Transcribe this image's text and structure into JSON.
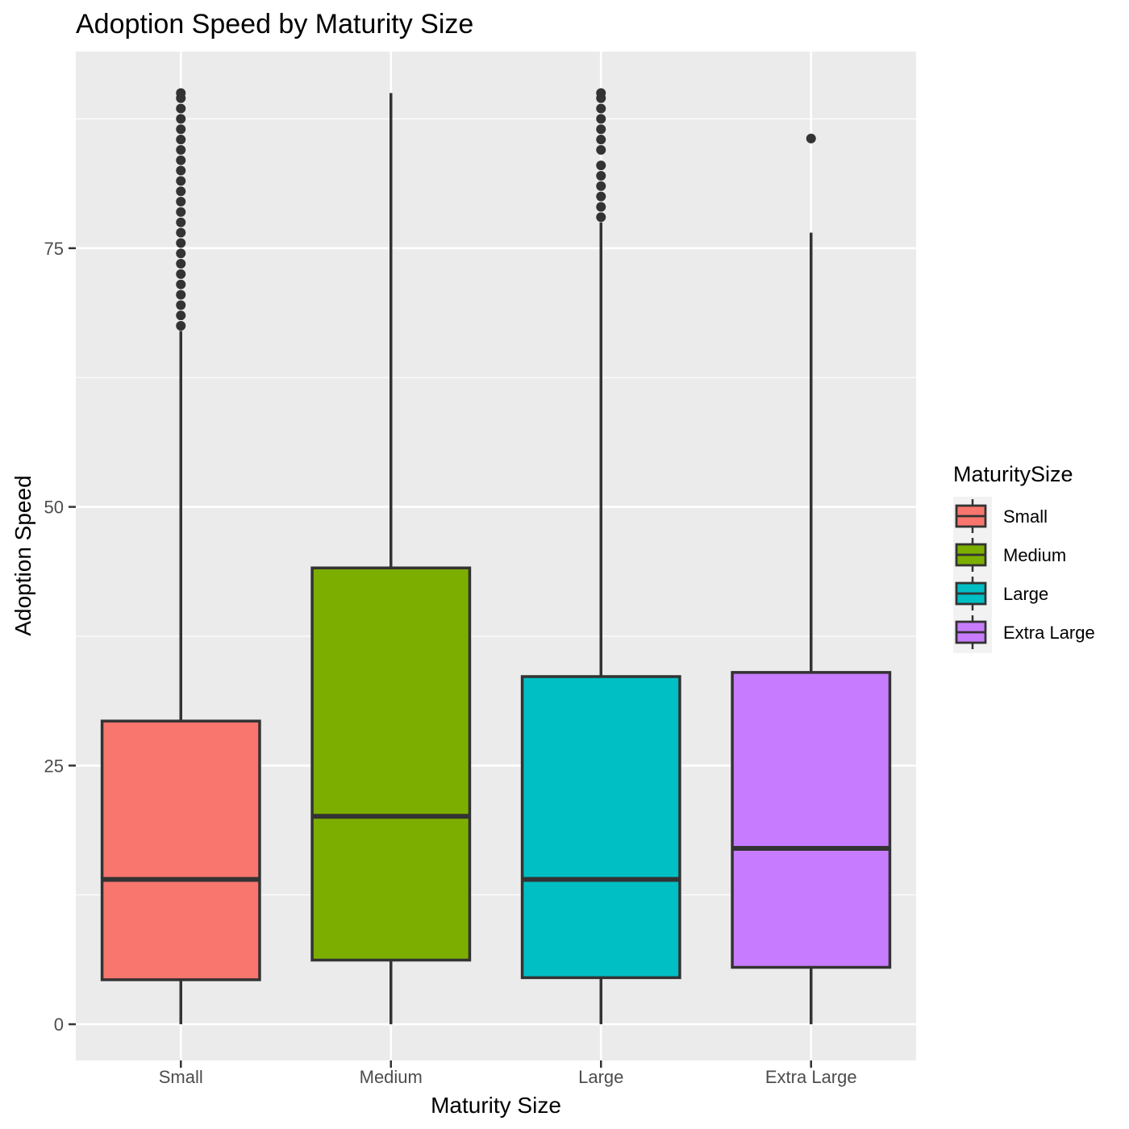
{
  "chart_data": {
    "type": "box",
    "title": "Adoption Speed by Maturity Size",
    "xlabel": "Maturity Size",
    "ylabel": "Adoption Speed",
    "ylim": [
      -3.5,
      94
    ],
    "yticks": [
      0,
      25,
      50,
      75
    ],
    "ytick_labels": [
      "0",
      "25",
      "50",
      "75"
    ],
    "grid": true,
    "legend": {
      "title": "MaturitySize",
      "position": "right",
      "entries": [
        "Small",
        "Medium",
        "Large",
        "Extra Large"
      ]
    },
    "categories": [
      "Small",
      "Medium",
      "Large",
      "Extra Large"
    ],
    "colors": {
      "Small": "#F8766D",
      "Medium": "#7CAE00",
      "Large": "#00BFC4",
      "Extra Large": "#C77CFF",
      "panel": "#EBEBEB",
      "grid": "#FFFFFF",
      "outline": "#333333"
    },
    "boxes": [
      {
        "category": "Small",
        "min": 0,
        "q1": 4.3,
        "median": 14,
        "q3": 29.3,
        "max": 67,
        "outliers": [
          67.5,
          68.5,
          69.5,
          70.5,
          71.5,
          72.5,
          73.5,
          74.5,
          75.5,
          76.5,
          77.5,
          78.5,
          79.5,
          80.5,
          81.5,
          82.5,
          83.5,
          84.5,
          85.5,
          86.5,
          87.5,
          88.5,
          89.5,
          90
        ]
      },
      {
        "category": "Medium",
        "min": 0,
        "q1": 6.2,
        "median": 20.1,
        "q3": 44.1,
        "max": 90,
        "outliers": []
      },
      {
        "category": "Large",
        "min": 0,
        "q1": 4.5,
        "median": 14,
        "q3": 33.6,
        "max": 77.5,
        "outliers": [
          78,
          79,
          80,
          81,
          82,
          83,
          84.5,
          85.5,
          86.5,
          87.5,
          88.5,
          89.5,
          90
        ]
      },
      {
        "category": "Extra Large",
        "min": 0,
        "q1": 5.5,
        "median": 17,
        "q3": 34,
        "max": 76.5,
        "outliers": [
          85.6
        ]
      }
    ]
  }
}
